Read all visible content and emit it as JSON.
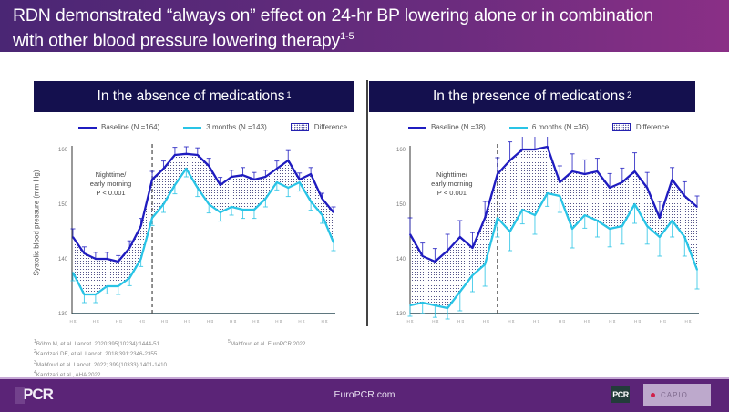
{
  "header": {
    "title_line1": "RDN demonstrated “always on” effect on 24-hr BP lowering alone or in combination",
    "title_line2": "with other blood pressure lowering therapy",
    "title_sup": "1-5"
  },
  "colors": {
    "baseline": "#1f1cc0",
    "followup": "#29c4e6",
    "header_bg": "#5c2a79",
    "panel_title_bg": "#14104e",
    "footer_bg": "#5b2477"
  },
  "panels": [
    {
      "title": "In the absence of medications",
      "title_sup": "1",
      "legend": [
        {
          "label": "Baseline (N =164)",
          "kind": "line",
          "series": "baseline"
        },
        {
          "label": "3 months (N =143)",
          "kind": "line",
          "series": "followup"
        },
        {
          "label": "Difference",
          "kind": "pattern"
        }
      ],
      "annotation": [
        "Nighttime/",
        "early morning",
        "P < 0.001"
      ]
    },
    {
      "title": "In the presence of medications",
      "title_sup": "2",
      "legend": [
        {
          "label": "Baseline (N =38)",
          "kind": "line",
          "series": "baseline"
        },
        {
          "label": "6 months (N =36)",
          "kind": "line",
          "series": "followup"
        },
        {
          "label": "Difference",
          "kind": "pattern"
        }
      ],
      "annotation": [
        "Nighttime/",
        "early morning",
        "P < 0.001"
      ]
    }
  ],
  "chart_data": [
    {
      "type": "line",
      "title": "In the absence of medications",
      "ylabel": "Systolic  blood pressure (mm Hg)",
      "xlabel": "",
      "ylim": [
        130,
        160
      ],
      "yticks": [
        130,
        140,
        150,
        160
      ],
      "xtick_labels": [
        "H tt",
        "H tt",
        "H tt",
        "H tt",
        "H tt",
        "H tt",
        "H tt",
        "H tt",
        "H tt",
        "H tt",
        "H tt",
        "H tt"
      ],
      "divider_index": 7,
      "annotation": "Nighttime/ early morning P < 0.001",
      "legend_position": "top",
      "series": [
        {
          "name": "Baseline (N =164)",
          "color": "#1f1cc0",
          "values": [
            144,
            141,
            140,
            140,
            139.5,
            142,
            146,
            154.5,
            156.5,
            159,
            159.2,
            159,
            157,
            153.5,
            155,
            155.3,
            154.5,
            155,
            156.5,
            158,
            154.5,
            155.5,
            151,
            148.5
          ],
          "errors": [
            1.5,
            1.2,
            1.2,
            1.2,
            1.1,
            1.3,
            1.4,
            1.5,
            1.4,
            1.4,
            1.3,
            1.3,
            1.4,
            1.4,
            1.2,
            1.4,
            1.3,
            1.2,
            1.4,
            1.8,
            1.2,
            1.2,
            1.0,
            1.0
          ]
        },
        {
          "name": "3 months (N =143)",
          "color": "#29c4e6",
          "values": [
            137.5,
            133.5,
            133.5,
            135,
            135,
            136.5,
            140,
            147.5,
            150,
            153.5,
            156.5,
            153,
            150,
            148.5,
            149.5,
            149,
            149,
            151,
            154,
            153,
            154,
            150.5,
            148,
            143
          ],
          "errors": [
            1.5,
            1.5,
            1.5,
            1.4,
            1.5,
            1.4,
            1.4,
            1.4,
            1.5,
            1.6,
            1.5,
            1.6,
            1.6,
            1.6,
            1.5,
            1.6,
            1.6,
            1.5,
            1.4,
            1.6,
            1.6,
            1.6,
            1.5,
            1.5
          ]
        }
      ],
      "fill_between": "Difference"
    },
    {
      "type": "line",
      "title": "In the presence of medications",
      "ylabel": "",
      "xlabel": "",
      "ylim": [
        130,
        160
      ],
      "yticks": [
        130,
        140,
        150,
        160
      ],
      "xtick_labels": [
        "H tt",
        "H tt",
        "H tt",
        "H tt",
        "H tt",
        "H tt",
        "H tt",
        "H tt",
        "H tt",
        "H tt",
        "H tt",
        "H tt"
      ],
      "divider_index": 7,
      "annotation": "Nighttime/ early morning P < 0.001",
      "legend_position": "top",
      "series": [
        {
          "name": "Baseline (N =38)",
          "color": "#1f1cc0",
          "values": [
            144.5,
            140.5,
            139.5,
            141.5,
            144,
            142,
            147.5,
            155.5,
            158,
            160,
            160,
            160.5,
            154,
            156,
            155.5,
            156,
            153,
            154,
            156,
            153,
            147.5,
            154.5,
            151.5,
            149.5
          ],
          "errors": [
            3,
            2.4,
            2.4,
            3,
            3,
            2.8,
            3,
            3,
            3.4,
            3,
            3,
            3,
            3,
            3.2,
            2.6,
            2.4,
            2.6,
            2.6,
            3.4,
            2.8,
            3,
            2.2,
            2.6,
            2
          ]
        },
        {
          "name": "6 months (N =36)",
          "color": "#29c4e6",
          "values": [
            131.5,
            132,
            131.5,
            131,
            134,
            137,
            139,
            147.5,
            145,
            149,
            148,
            152,
            151.5,
            145.5,
            148,
            147,
            145.5,
            146,
            150,
            146,
            144,
            147,
            144,
            138
          ],
          "errors": [
            2,
            2,
            2.2,
            2,
            3.5,
            3,
            4,
            3.5,
            3.5,
            2.6,
            3.5,
            2.4,
            3,
            3.5,
            2.4,
            3,
            3.3,
            3.3,
            3.5,
            3.3,
            3.5,
            3,
            3.5,
            3.5
          ]
        }
      ],
      "fill_between": "Difference"
    }
  ],
  "references": {
    "col1": [
      {
        "sup": "1",
        "text": "Böhm M, et al. Lancet. 2020;395(10234):1444-51"
      },
      {
        "sup": "2",
        "text": "Kandzari DE, et al. Lancet. 2018;391:2346-2355."
      },
      {
        "sup": "3",
        "text": "Mahfoud et al. Lancet. 2022; 399(10333):1401-1410."
      },
      {
        "sup": "4",
        "text": "Kandzari et al., AHA 2022"
      }
    ],
    "col2": [
      {
        "sup": "5",
        "text": "Mahfoud et al. EuroPCR 2022."
      }
    ]
  },
  "footer": {
    "site": "EuroPCR.com",
    "logo_left": "PCR",
    "logo_right_small": "PCR",
    "logo_partner": "CAPIO"
  }
}
